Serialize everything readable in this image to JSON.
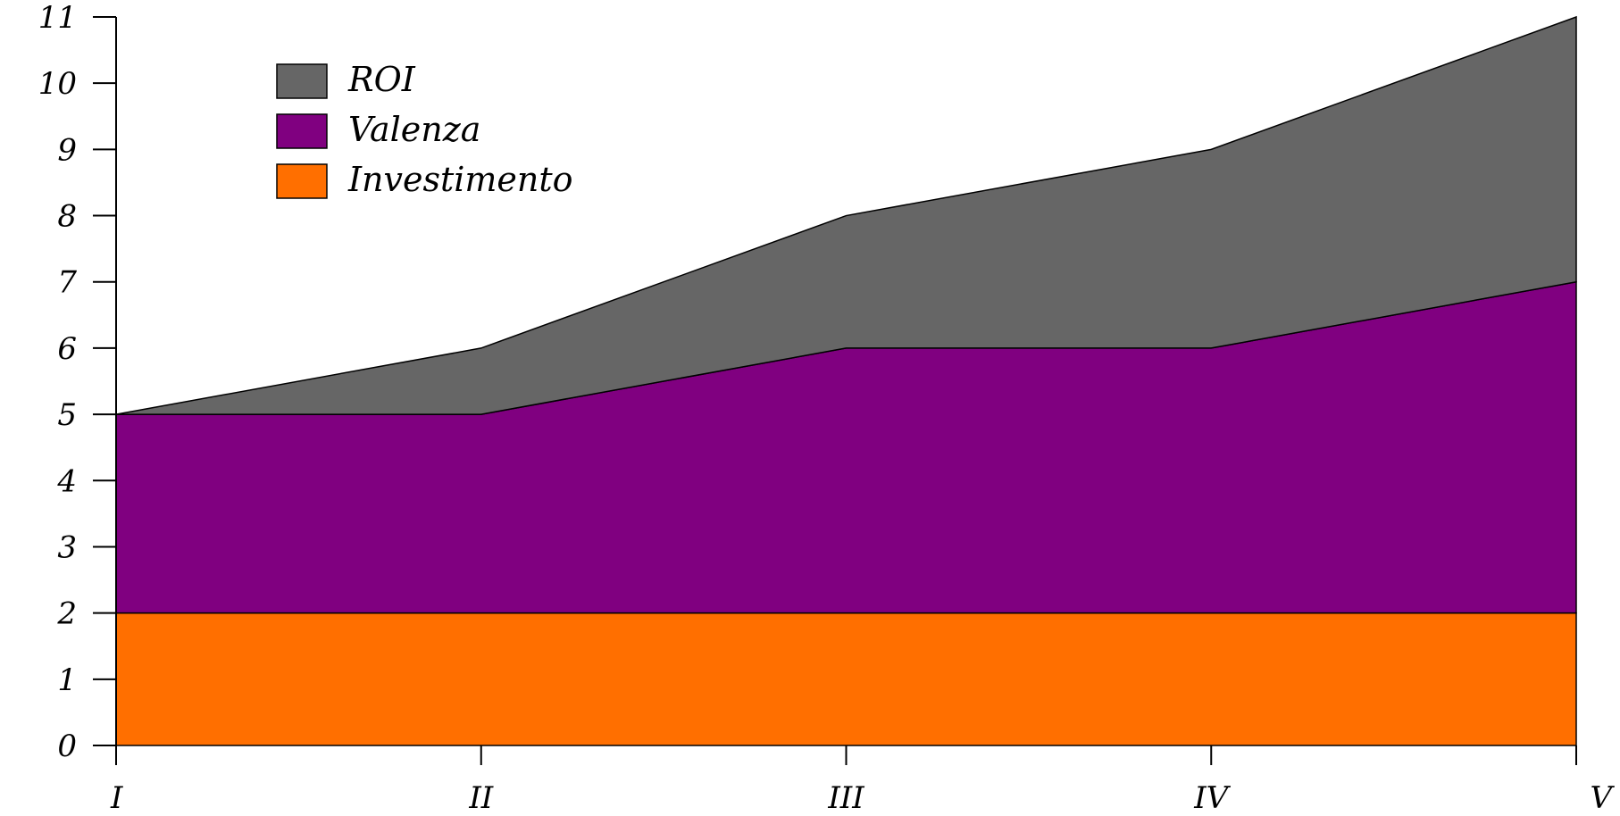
{
  "chart_data": {
    "type": "area",
    "stacked": true,
    "categories": [
      "I",
      "II",
      "III",
      "IV",
      "V"
    ],
    "series": [
      {
        "name": "Investimento",
        "values": [
          2,
          2,
          2,
          2,
          2
        ],
        "color": "#ff6f00"
      },
      {
        "name": "Valenza",
        "values": [
          3,
          3,
          4,
          4,
          5
        ],
        "color": "#800080"
      },
      {
        "name": "ROI",
        "values": [
          0,
          1,
          2,
          3,
          4
        ],
        "color": "#666666"
      }
    ],
    "title": "",
    "xlabel": "",
    "ylabel": "",
    "ylim": [
      0,
      11
    ],
    "yticks": [
      0,
      1,
      2,
      3,
      4,
      5,
      6,
      7,
      8,
      9,
      10,
      11
    ],
    "grid": false,
    "legend_position": "top-left",
    "legend_order": [
      "ROI",
      "Valenza",
      "Investimento"
    ]
  }
}
